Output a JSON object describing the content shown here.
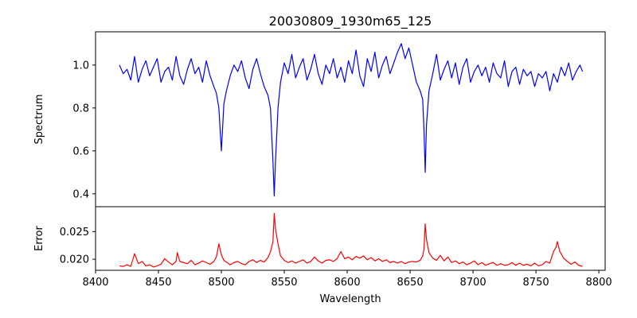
{
  "chart_data": {
    "type": "line",
    "title": "20030809_1930m65_125",
    "xlabel": "Wavelength",
    "xlim": [
      8400,
      8805
    ],
    "xticks": [
      8400,
      8450,
      8500,
      8550,
      8600,
      8650,
      8700,
      8750,
      8800
    ],
    "grid": false,
    "panels": [
      {
        "name": "spectrum",
        "ylabel": "Spectrum",
        "ylim": [
          0.34,
          1.155
        ],
        "yticks": [
          0.4,
          0.6,
          0.8,
          1.0
        ],
        "ytick_labels": [
          "0.4",
          "0.6",
          "0.8",
          "1.0"
        ],
        "color": "#0000ff",
        "x": [
          8419,
          8422,
          8425,
          8428,
          8431,
          8434,
          8437,
          8440,
          8443,
          8446,
          8449,
          8452,
          8455,
          8458,
          8461,
          8464,
          8467,
          8470,
          8473,
          8476,
          8479,
          8482,
          8485,
          8488,
          8491,
          8494,
          8496,
          8498,
          8500,
          8502,
          8504,
          8507,
          8510,
          8513,
          8516,
          8519,
          8522,
          8525,
          8528,
          8531,
          8534,
          8537,
          8539,
          8541,
          8542,
          8543,
          8545,
          8547,
          8550,
          8553,
          8556,
          8559,
          8562,
          8565,
          8568,
          8571,
          8574,
          8577,
          8580,
          8583,
          8586,
          8589,
          8592,
          8595,
          8598,
          8601,
          8604,
          8607,
          8610,
          8613,
          8616,
          8619,
          8622,
          8625,
          8628,
          8631,
          8634,
          8637,
          8640,
          8643,
          8646,
          8649,
          8652,
          8655,
          8658,
          8660,
          8661,
          8662,
          8663,
          8665,
          8668,
          8671,
          8674,
          8677,
          8680,
          8683,
          8686,
          8689,
          8692,
          8695,
          8698,
          8701,
          8704,
          8707,
          8710,
          8713,
          8716,
          8719,
          8722,
          8725,
          8728,
          8731,
          8734,
          8737,
          8740,
          8743,
          8746,
          8749,
          8752,
          8755,
          8758,
          8761,
          8764,
          8767,
          8770,
          8773,
          8776,
          8779,
          8782,
          8785,
          8787
        ],
        "values": [
          1.0,
          0.96,
          0.98,
          0.93,
          1.04,
          0.92,
          0.98,
          1.02,
          0.95,
          0.99,
          1.03,
          0.92,
          0.97,
          0.99,
          0.93,
          1.04,
          0.95,
          0.91,
          0.98,
          1.03,
          0.96,
          0.99,
          0.92,
          1.02,
          0.95,
          0.9,
          0.87,
          0.8,
          0.6,
          0.82,
          0.88,
          0.95,
          1.0,
          0.97,
          1.02,
          0.94,
          0.89,
          0.98,
          1.03,
          0.96,
          0.9,
          0.86,
          0.8,
          0.55,
          0.39,
          0.55,
          0.8,
          0.92,
          1.01,
          0.96,
          1.05,
          0.94,
          0.99,
          1.03,
          0.93,
          0.98,
          1.05,
          0.96,
          0.91,
          1.0,
          0.96,
          1.03,
          0.94,
          0.99,
          0.92,
          1.02,
          0.96,
          1.07,
          0.95,
          0.9,
          1.03,
          0.97,
          1.06,
          0.94,
          1.0,
          1.04,
          0.96,
          1.01,
          1.06,
          1.1,
          1.03,
          1.08,
          1.0,
          0.92,
          0.88,
          0.84,
          0.7,
          0.5,
          0.72,
          0.88,
          0.96,
          1.05,
          0.93,
          0.98,
          1.02,
          0.94,
          1.01,
          0.91,
          0.99,
          1.03,
          0.92,
          0.97,
          1.0,
          0.95,
          0.99,
          0.92,
          1.01,
          0.96,
          0.94,
          1.02,
          0.9,
          0.97,
          0.99,
          0.91,
          0.98,
          0.95,
          0.97,
          0.9,
          0.96,
          0.94,
          0.97,
          0.88,
          0.96,
          0.92,
          0.99,
          0.95,
          1.01,
          0.93,
          0.97,
          1.0,
          0.97
        ],
        "labels": {}
      },
      {
        "name": "error",
        "ylabel": "Error",
        "ylim": [
          0.018,
          0.0295
        ],
        "yticks": [
          0.02,
          0.025
        ],
        "ytick_labels": [
          "0.020",
          "0.025"
        ],
        "color": "#ff0000",
        "x": [
          8419,
          8422,
          8425,
          8428,
          8431,
          8434,
          8437,
          8440,
          8443,
          8446,
          8449,
          8452,
          8455,
          8458,
          8461,
          8464,
          8465,
          8467,
          8470,
          8473,
          8476,
          8479,
          8482,
          8485,
          8488,
          8491,
          8494,
          8496,
          8497,
          8498,
          8500,
          8502,
          8504,
          8507,
          8510,
          8513,
          8516,
          8519,
          8522,
          8525,
          8528,
          8531,
          8534,
          8537,
          8539,
          8541,
          8542,
          8543,
          8545,
          8547,
          8550,
          8553,
          8556,
          8559,
          8562,
          8565,
          8568,
          8571,
          8574,
          8577,
          8580,
          8583,
          8586,
          8589,
          8592,
          8595,
          8598,
          8601,
          8604,
          8607,
          8610,
          8613,
          8616,
          8619,
          8622,
          8625,
          8628,
          8631,
          8634,
          8637,
          8640,
          8643,
          8646,
          8649,
          8652,
          8655,
          8658,
          8660,
          8661,
          8662,
          8663,
          8665,
          8668,
          8671,
          8674,
          8677,
          8680,
          8683,
          8686,
          8689,
          8692,
          8695,
          8698,
          8701,
          8704,
          8707,
          8710,
          8713,
          8716,
          8719,
          8722,
          8725,
          8728,
          8731,
          8734,
          8737,
          8740,
          8743,
          8746,
          8749,
          8752,
          8755,
          8758,
          8761,
          8764,
          8766,
          8767,
          8769,
          8772,
          8775,
          8778,
          8781,
          8784,
          8787
        ],
        "values": [
          0.0188,
          0.0187,
          0.019,
          0.0187,
          0.021,
          0.0192,
          0.0196,
          0.0188,
          0.019,
          0.0186,
          0.0188,
          0.0191,
          0.0201,
          0.0195,
          0.019,
          0.0196,
          0.0212,
          0.0196,
          0.0194,
          0.0192,
          0.0198,
          0.019,
          0.0193,
          0.0197,
          0.0194,
          0.0191,
          0.0196,
          0.0204,
          0.0215,
          0.0228,
          0.0208,
          0.0198,
          0.0195,
          0.019,
          0.0194,
          0.0196,
          0.0192,
          0.019,
          0.0196,
          0.0199,
          0.0194,
          0.0198,
          0.0195,
          0.0203,
          0.0213,
          0.0232,
          0.0283,
          0.0255,
          0.0228,
          0.0206,
          0.0198,
          0.0194,
          0.0197,
          0.0193,
          0.0196,
          0.0199,
          0.0193,
          0.0196,
          0.0204,
          0.0197,
          0.0193,
          0.0198,
          0.0199,
          0.0196,
          0.0201,
          0.0214,
          0.0201,
          0.0204,
          0.0199,
          0.0205,
          0.0202,
          0.0206,
          0.0199,
          0.0203,
          0.0197,
          0.0201,
          0.0196,
          0.0199,
          0.0194,
          0.0196,
          0.0193,
          0.0196,
          0.0192,
          0.0195,
          0.0196,
          0.0195,
          0.0198,
          0.0206,
          0.0218,
          0.0264,
          0.0236,
          0.0212,
          0.0202,
          0.0198,
          0.0207,
          0.0197,
          0.0204,
          0.0194,
          0.0197,
          0.0192,
          0.0195,
          0.019,
          0.0193,
          0.0197,
          0.019,
          0.0194,
          0.0189,
          0.0192,
          0.0194,
          0.0189,
          0.0192,
          0.0189,
          0.019,
          0.0194,
          0.0189,
          0.0193,
          0.0189,
          0.0191,
          0.0188,
          0.0193,
          0.0188,
          0.019,
          0.0196,
          0.0193,
          0.0214,
          0.0222,
          0.0232,
          0.0214,
          0.0202,
          0.0196,
          0.0191,
          0.0195,
          0.0189,
          0.0187
        ]
      }
    ]
  }
}
